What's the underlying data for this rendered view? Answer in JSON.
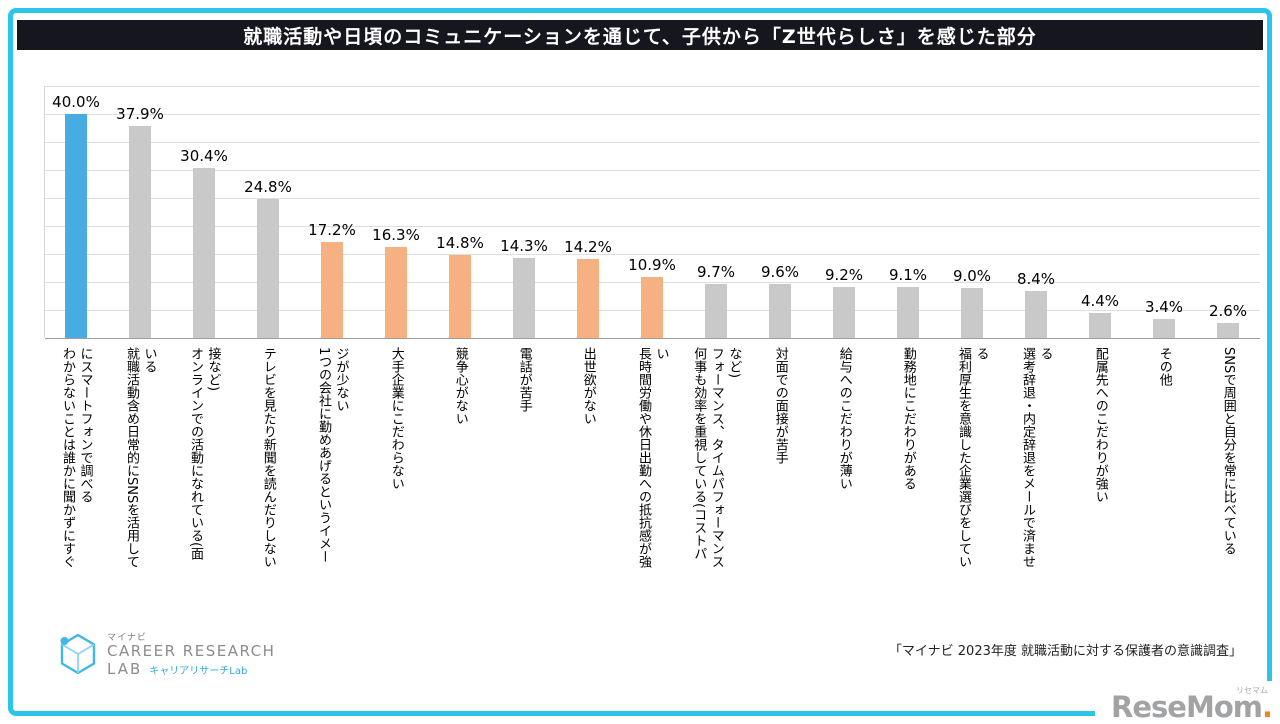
{
  "title": "就職活動や日頃のコミュニケーションを通じて、子供から「Z世代らしさ」を感じた部分",
  "source": "「マイナビ 2023年度 就職活動に対する保護者の意識調査」",
  "logo": {
    "brand": "マイナビ",
    "line1": "CAREER RESEARCH",
    "line2": "LAB",
    "sub": "キャリアリサーチLab"
  },
  "watermark": {
    "name_main": "ReseMom",
    "dot": ".",
    "kana": "リセマム"
  },
  "colors": {
    "frame": "#2BC4EA",
    "title_bg": "#16161E",
    "bar_blue": "#47ACE2",
    "bar_orange": "#F6B182",
    "bar_gray": "#C9C9C9",
    "grid": "#DEDEDE",
    "axis": "#9E9E9E"
  },
  "chart_data": {
    "type": "bar",
    "title": "就職活動や日頃のコミュニケーションを通じて、子供から「Z世代らしさ」を感じた部分",
    "xlabel": "",
    "ylabel": "",
    "ylim": [
      0,
      45
    ],
    "grid_step": 5,
    "legend": "none",
    "value_label_format": "percent_one_decimal",
    "categories": [
      "わからないことは誰かに聞かずにすぐにスマートフォンで調べる",
      "就職活動含め日常的にSNSを活用している",
      "オンラインでの活動になれている(面接など)",
      "テレビを見たり新聞を読んだりしない",
      "1つの会社に勤めあげるというイメージが少ない",
      "大手企業にこだわらない",
      "競争心がない",
      "電話が苦手",
      "出世欲がない",
      "長時間労働や休日出勤への抵抗感が強い",
      "何事も効率を重視している(コストパフォーマンス、タイムパフォーマンスなど)",
      "対面での面接が苦手",
      "給与へのこだわりが薄い",
      "勤務地にこだわりがある",
      "福利厚生を意識した企業選びをしている",
      "選考辞退・内定辞退をメールで済ませる",
      "配属先へのこだわりが強い",
      "その他",
      "SNSで周囲と自分を常に比べている"
    ],
    "values": [
      40.0,
      37.9,
      30.4,
      24.8,
      17.2,
      16.3,
      14.8,
      14.3,
      14.2,
      10.9,
      9.7,
      9.6,
      9.2,
      9.1,
      9.0,
      8.4,
      4.4,
      3.4,
      2.6
    ],
    "bar_colors": [
      "blue",
      "gray",
      "gray",
      "gray",
      "orange",
      "orange",
      "orange",
      "gray",
      "orange",
      "orange",
      "gray",
      "gray",
      "gray",
      "gray",
      "gray",
      "gray",
      "gray",
      "gray",
      "gray"
    ]
  }
}
